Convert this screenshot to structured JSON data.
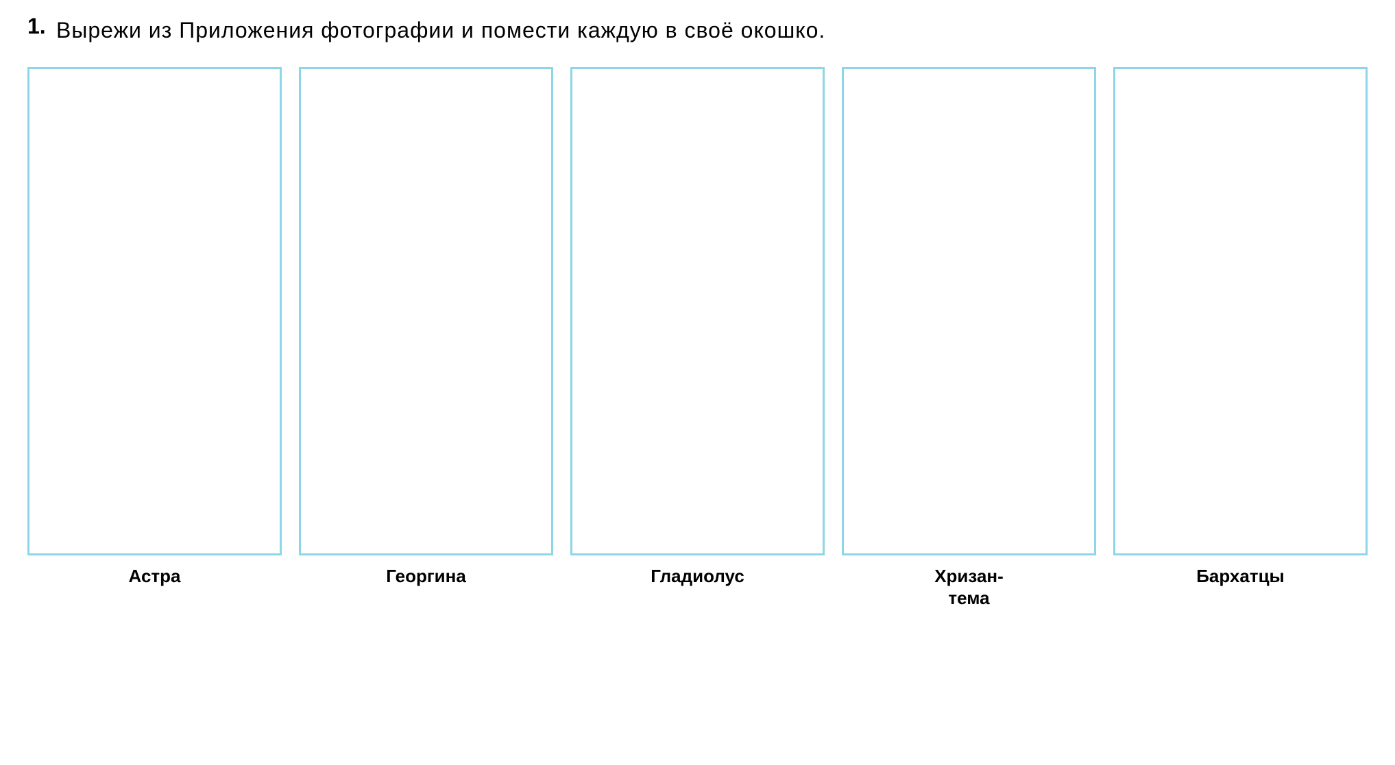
{
  "task": {
    "number": "1.",
    "text": "Вырежи из Приложения фотографии и помести каждую в своё окошко."
  },
  "boxes": {
    "border_color": "#8cd6e8",
    "background_color": "#ffffff",
    "items": [
      {
        "label": "Астра"
      },
      {
        "label": "Георгина"
      },
      {
        "label": "Гладиолус"
      },
      {
        "label": "Хризан-\nтема"
      },
      {
        "label": "Бархатцы"
      }
    ]
  },
  "typography": {
    "task_number_fontsize": 32,
    "task_text_fontsize": 32,
    "label_fontsize": 26,
    "text_color": "#000000"
  }
}
